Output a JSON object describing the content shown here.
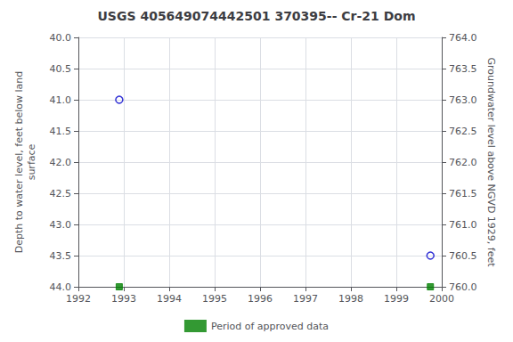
{
  "chart_data": {
    "type": "scatter",
    "title": "USGS 405649074442501 370395-- Cr-21 Dom",
    "ylabel": "Depth to water level, feet below land\nsurface",
    "y2label": "Groundwater level above NGVD 1929, feet",
    "x": [
      1992.9,
      1999.75
    ],
    "series": [
      {
        "color": "#0000cc",
        "marker": "circle",
        "values": [
          41.0,
          43.5
        ]
      },
      {
        "name": "Period of approved data",
        "color": "#008000",
        "marker": "square",
        "values": [
          44.0,
          44.0
        ]
      }
    ],
    "xlim": [
      1992,
      2000
    ],
    "xticks": [
      1992,
      1993,
      1994,
      1995,
      1996,
      1997,
      1998,
      1999,
      2000
    ],
    "ylim": [
      44.0,
      40.0
    ],
    "yticks": [
      {
        "value": 40,
        "label": "40.0"
      },
      40.5,
      {
        "value": 41,
        "label": "41.0"
      },
      41.5,
      {
        "value": 42,
        "label": "42.0"
      },
      42.5,
      {
        "value": 43,
        "label": "43.0"
      },
      43.5,
      {
        "value": 44,
        "label": "44.0"
      }
    ],
    "y2lim": [
      760.0,
      764.0
    ],
    "y2ticks": [
      {
        "value": 760,
        "label": "760.0"
      },
      760.5,
      {
        "value": 761,
        "label": "761.0"
      },
      761.5,
      {
        "value": 762,
        "label": "762.0"
      },
      762.5,
      {
        "value": 763,
        "label": "763.0"
      },
      763.5,
      {
        "value": 764,
        "label": "764.0"
      }
    ],
    "grid": true,
    "legend": "bottom"
  }
}
